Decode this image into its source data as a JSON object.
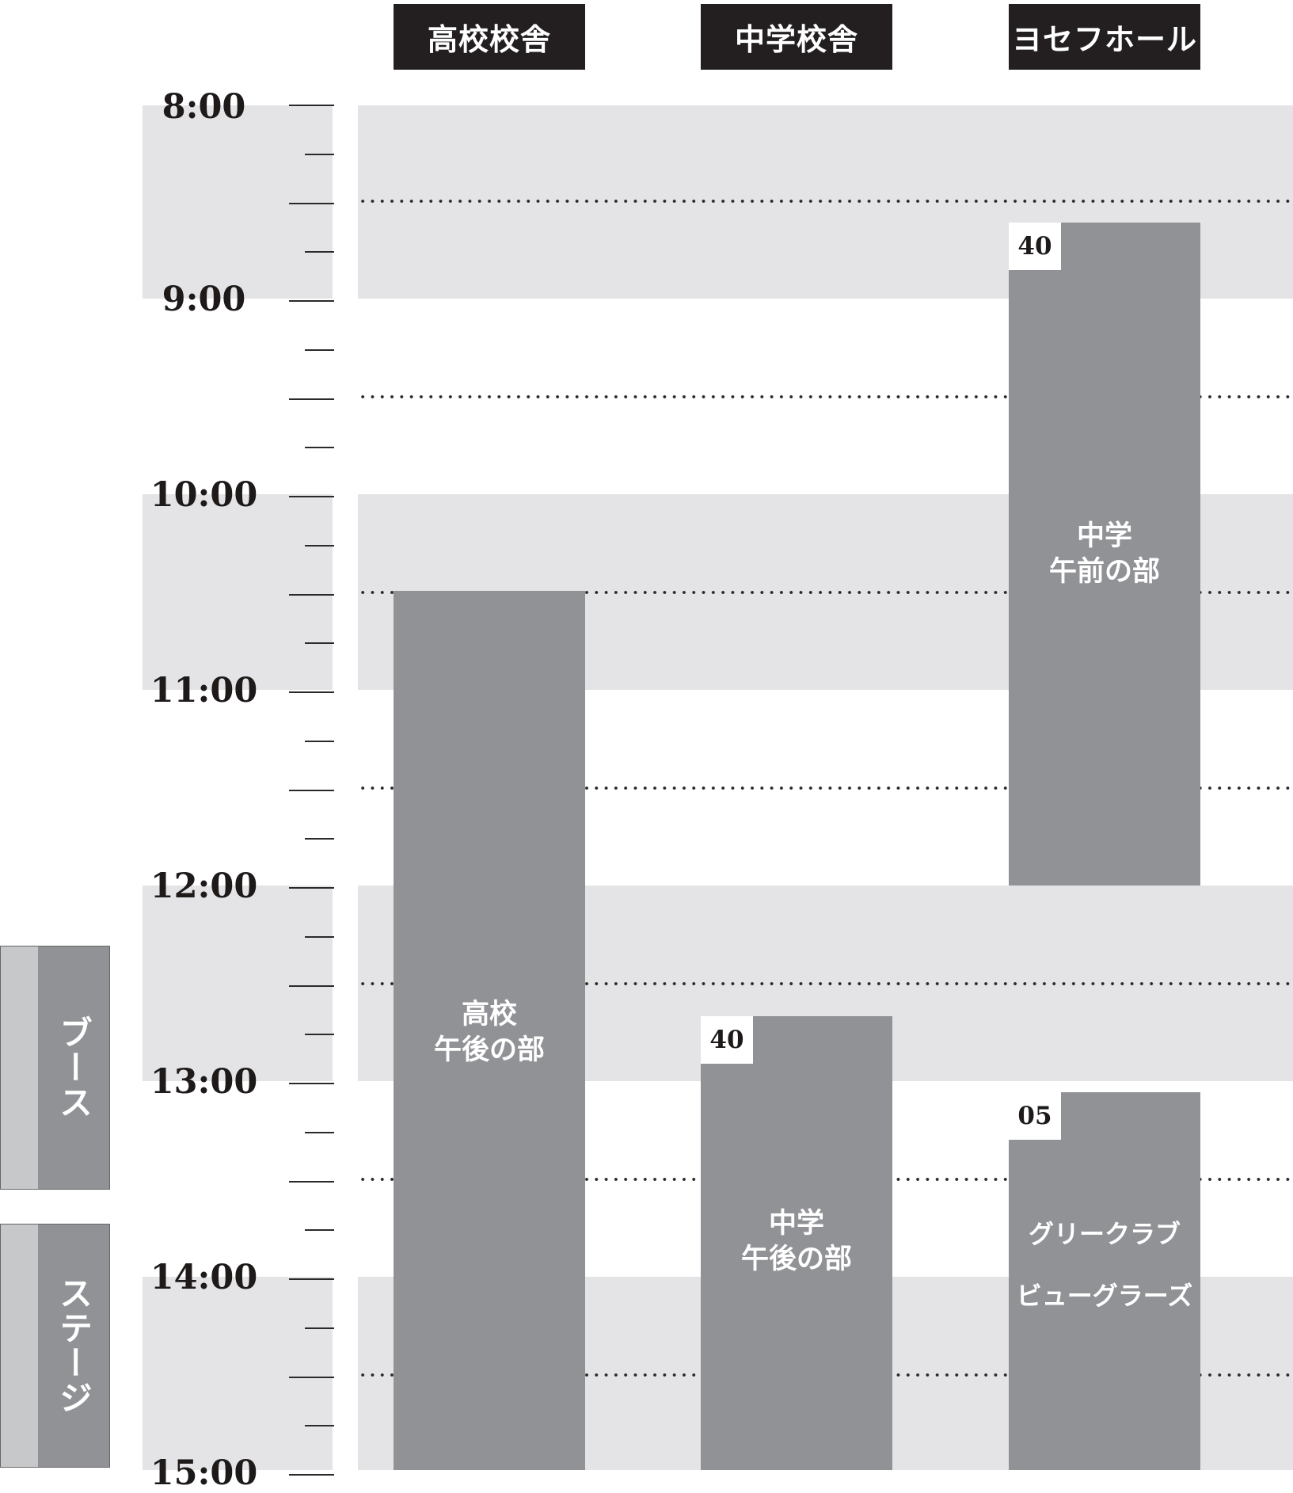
{
  "columns": [
    {
      "label": "高校校舎"
    },
    {
      "label": "中学校舎"
    },
    {
      "label": "ヨセフホール"
    }
  ],
  "time_labels": [
    "8:00",
    "9:00",
    "10:00",
    "11:00",
    "12:00",
    "13:00",
    "14:00",
    "15:00"
  ],
  "events": [
    {
      "column": 0,
      "start": "10:30",
      "end": "15:00",
      "lines": [
        "高校",
        "午後の部"
      ],
      "badge": ""
    },
    {
      "column": 1,
      "start": "12:40",
      "end": "15:00",
      "lines": [
        "中学",
        "午後の部"
      ],
      "badge": "40"
    },
    {
      "column": 2,
      "start": "8:40",
      "end": "12:00",
      "lines": [
        "中学",
        "午前の部"
      ],
      "badge": "40"
    },
    {
      "column": 2,
      "start": "13:05",
      "end": "15:00",
      "lines": [
        "グリークラブ",
        "ビューグラーズ"
      ],
      "badge": "05"
    }
  ],
  "legend": [
    {
      "label": "ブース"
    },
    {
      "label": "ステージ"
    }
  ],
  "colors": {
    "header_bg": "#231f20",
    "event_bg": "#919296",
    "band_bg": "#e4e4e6",
    "legend_swatch": "#c7c8ca"
  }
}
